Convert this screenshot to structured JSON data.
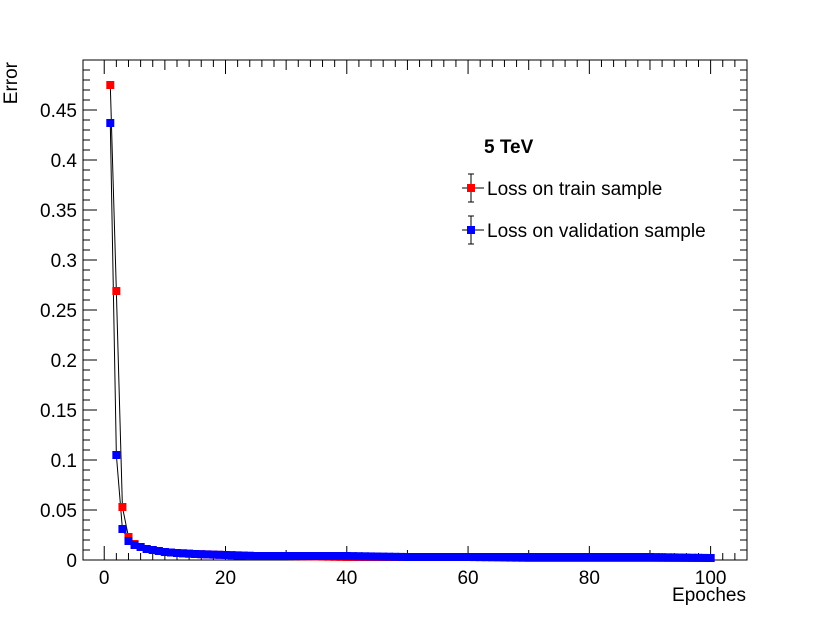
{
  "chart_data": {
    "type": "line",
    "xlabel": "Epoches",
    "ylabel": "Error",
    "xlim": [
      -3.5,
      106
    ],
    "ylim": [
      0,
      0.5
    ],
    "x_ticks": [
      0,
      20,
      40,
      60,
      80,
      100
    ],
    "x_tick_labels": [
      "0",
      "20",
      "40",
      "60",
      "80",
      "100"
    ],
    "y_ticks": [
      0,
      0.05,
      0.1,
      0.15,
      0.2,
      0.25,
      0.3,
      0.35,
      0.4,
      0.45
    ],
    "y_tick_labels": [
      "0",
      "0.05",
      "0.1",
      "0.15",
      "0.2",
      "0.25",
      "0.3",
      "0.35",
      "0.4",
      "0.45"
    ],
    "legend": {
      "header": "5 TeV",
      "placement": "top-right"
    },
    "series": [
      {
        "name": "Loss on train sample",
        "color": "#ff0000",
        "marker": "square",
        "x": [
          1,
          2,
          3,
          4,
          5,
          6,
          7,
          8,
          9,
          10,
          12,
          15,
          20,
          25,
          30,
          40,
          50,
          60,
          70,
          80,
          90,
          100
        ],
        "y": [
          0.475,
          0.269,
          0.053,
          0.023,
          0.016,
          0.013,
          0.011,
          0.01,
          0.009,
          0.008,
          0.007,
          0.006,
          0.005,
          0.004,
          0.004,
          0.003,
          0.003,
          0.003,
          0.002,
          0.002,
          0.002,
          0.002
        ]
      },
      {
        "name": "Loss on validation sample",
        "color": "#0000ff",
        "marker": "square",
        "x": [
          1,
          2,
          3,
          4,
          5,
          6,
          7,
          8,
          9,
          10,
          12,
          15,
          20,
          25,
          30,
          40,
          50,
          60,
          70,
          80,
          90,
          100
        ],
        "y": [
          0.437,
          0.105,
          0.031,
          0.019,
          0.015,
          0.013,
          0.011,
          0.01,
          0.009,
          0.008,
          0.007,
          0.006,
          0.005,
          0.004,
          0.004,
          0.004,
          0.003,
          0.003,
          0.003,
          0.003,
          0.003,
          0.002
        ]
      }
    ]
  }
}
